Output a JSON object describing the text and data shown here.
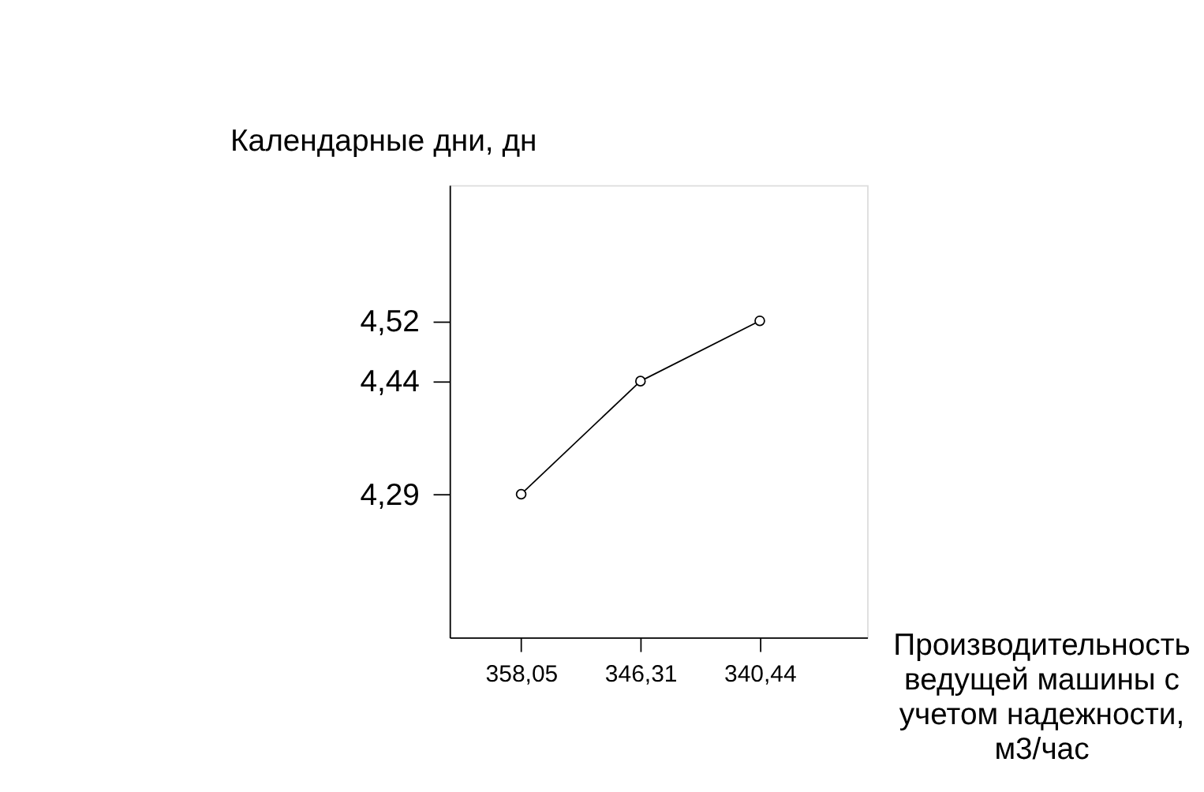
{
  "chart_data": {
    "type": "line",
    "xlabel": "Производительность ведущей машины с учетом надежности, м3/час",
    "ylabel": "Календарные дни, дн",
    "categories": [
      "358,05",
      "346,31",
      "340,44"
    ],
    "series": [
      {
        "color": "#000000",
        "values": [
          4.29,
          4.44,
          4.52
        ]
      }
    ],
    "ylim": [
      4.1,
      4.7
    ],
    "yticks": [
      {
        "value": 4.29,
        "label": "4,29"
      },
      {
        "value": 4.44,
        "label": "4,44"
      },
      {
        "value": 4.52,
        "label": "4,52"
      }
    ],
    "marker": "circle",
    "line_style": "solid",
    "grid": false
  }
}
